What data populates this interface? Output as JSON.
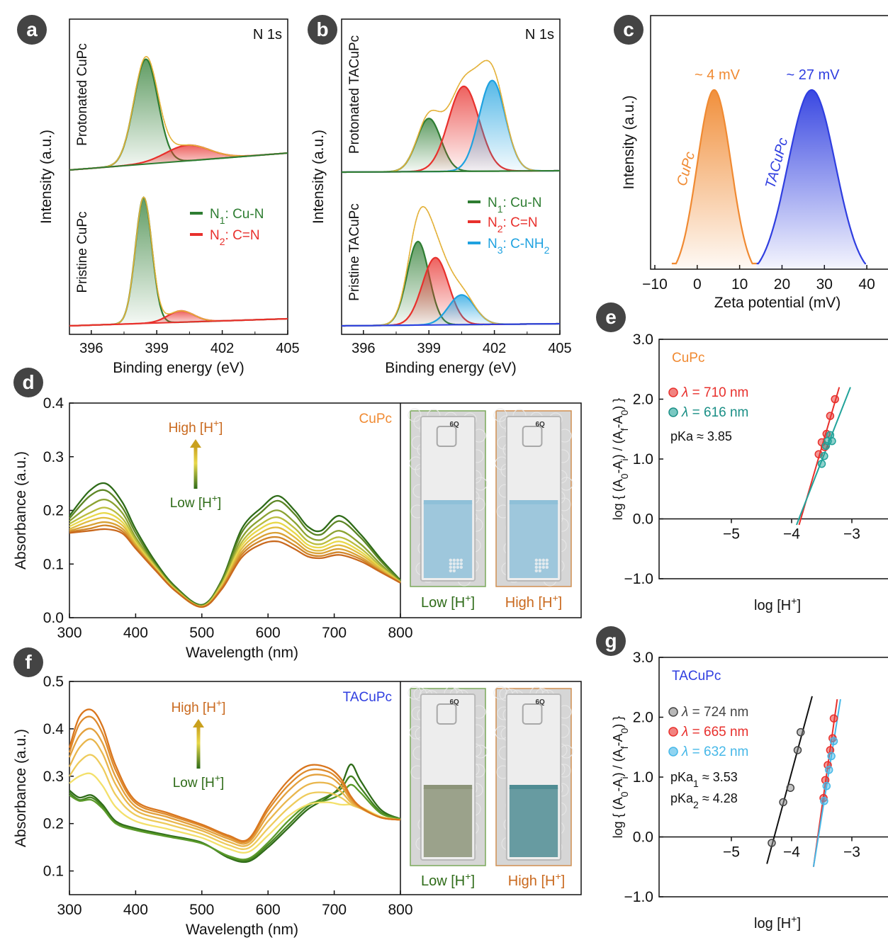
{
  "colors": {
    "n1": "#2e7d32",
    "n2": "#e8302c",
    "n3": "#1fa2e0",
    "cupc": "#f08a32",
    "tacupc": "#2f3ee0",
    "lowH": "#2e6b18",
    "highH": "#c9691e",
    "pts_red": "#e8302c",
    "pts_teal": "#21a39a",
    "pts_black": "#444444",
    "pts_sky": "#46b8e8",
    "panel_label_bg": "#444444"
  },
  "panels": {
    "a": {
      "label": "a",
      "corner": "N 1s",
      "ylabel": "Intensity (a.u.)",
      "xlabel": "Binding energy (eV)",
      "top_name": "Protonated CuPc",
      "bottom_name": "Pristine CuPc",
      "legend": [
        {
          "prefix": "N",
          "sub": "1",
          "rest": ": Cu-N"
        },
        {
          "prefix": "N",
          "sub": "2",
          "rest": ": C=N"
        }
      ]
    },
    "b": {
      "label": "b",
      "corner": "N 1s",
      "ylabel": "Intensity (a.u.)",
      "xlabel": "Binding energy (eV)",
      "top_name": "Protonated TACuPc",
      "bottom_name": "Pristine TACuPc",
      "legend": [
        {
          "prefix": "N",
          "sub": "1",
          "rest": ": Cu-N"
        },
        {
          "prefix": "N",
          "sub": "2",
          "rest": ": C=N"
        },
        {
          "prefix": "N",
          "sub": "3",
          "rest": ": C-NH",
          "tail_sub": "2"
        }
      ]
    },
    "c": {
      "label": "c",
      "ylabel": "Intensity (a.u.)",
      "xlabel": "Zeta potential (mV)",
      "annot_cupc": "~ 4 mV",
      "annot_tacupc": "~ 27 mV",
      "name_cupc": "CuPc",
      "name_tacupc": "TACuPc"
    },
    "d": {
      "label": "d",
      "ylabel": "Absorbance (a.u.)",
      "xlabel": "Wavelength (nm)",
      "tag": "CuPc",
      "high": "High [H",
      "low": "Low [H",
      "photo_low": "Low [H",
      "photo_high": "High [H",
      "cuvette_mark": "6Q"
    },
    "e": {
      "label": "e",
      "ylabel_main": "log { (A",
      "xlabel": "log [H",
      "tag": "CuPc",
      "legend": [
        "710 nm",
        "616 nm"
      ],
      "pka": "pKa ≈ 3.85"
    },
    "f": {
      "label": "f",
      "ylabel": "Absorbance (a.u.)",
      "xlabel": "Wavelength (nm)",
      "tag": "TACuPc",
      "high": "High [H",
      "low": "Low [H",
      "photo_low": "Low [H",
      "photo_high": "High [H",
      "cuvette_mark": "6Q"
    },
    "g": {
      "label": "g",
      "xlabel": "log [H",
      "tag": "TACuPc",
      "legend": [
        "724 nm",
        "665 nm",
        "632 nm"
      ],
      "pka1": "pKa",
      "pka1_sub": "1",
      "pka1_val": " ≈ 3.53",
      "pka2": "pKa",
      "pka2_sub": "2",
      "pka2_val": " ≈ 4.28"
    }
  },
  "chart_data": [
    {
      "panel": "a",
      "type": "line",
      "xlim": [
        395,
        405
      ],
      "xticks": [
        396,
        399,
        402,
        405
      ],
      "series": [
        {
          "name": "N1: Cu-N",
          "subplot": "Protonated CuPc",
          "peak_x": 398.5
        },
        {
          "name": "N2: C=N",
          "subplot": "Protonated CuPc",
          "peak_x": 400.4
        },
        {
          "name": "N1: Cu-N",
          "subplot": "Pristine CuPc",
          "peak_x": 398.4
        },
        {
          "name": "N2: C=N",
          "subplot": "Pristine CuPc",
          "peak_x": 400.1
        }
      ]
    },
    {
      "panel": "b",
      "type": "line",
      "xlim": [
        395,
        405
      ],
      "xticks": [
        396,
        399,
        402,
        405
      ],
      "series": [
        {
          "name": "N1: Cu-N",
          "subplot": "Protonated TACuPc",
          "peak_x": 399.0
        },
        {
          "name": "N2: C=N",
          "subplot": "Protonated TACuPc",
          "peak_x": 400.6
        },
        {
          "name": "N3: C-NH2",
          "subplot": "Protonated TACuPc",
          "peak_x": 401.9
        },
        {
          "name": "N1: Cu-N",
          "subplot": "Pristine TACuPc",
          "peak_x": 398.5
        },
        {
          "name": "N2: C=N",
          "subplot": "Pristine TACuPc",
          "peak_x": 399.3
        },
        {
          "name": "N3: C-NH2",
          "subplot": "Pristine TACuPc",
          "peak_x": 400.5
        }
      ]
    },
    {
      "panel": "c",
      "type": "area",
      "xlim": [
        -10,
        45
      ],
      "xticks": [
        -10,
        0,
        10,
        20,
        30,
        40
      ],
      "series": [
        {
          "name": "CuPc",
          "peak_x": 4
        },
        {
          "name": "TACuPc",
          "peak_x": 27
        }
      ]
    },
    {
      "panel": "d",
      "type": "line",
      "xlim": [
        300,
        800
      ],
      "ylim": [
        0.0,
        0.4
      ],
      "xticks": [
        300,
        400,
        500,
        600,
        700,
        800
      ],
      "yticks": [
        0.0,
        0.1,
        0.2,
        0.3,
        0.4
      ],
      "x": [
        300,
        330,
        355,
        380,
        400,
        430,
        460,
        500,
        530,
        560,
        590,
        615,
        640,
        660,
        680,
        708,
        740,
        770,
        800
      ],
      "series": [
        {
          "values": [
            0.19,
            0.236,
            0.25,
            0.215,
            0.165,
            0.104,
            0.058,
            0.024,
            0.07,
            0.165,
            0.205,
            0.227,
            0.2,
            0.17,
            0.162,
            0.19,
            0.155,
            0.11,
            0.07
          ]
        },
        {
          "values": [
            0.185,
            0.226,
            0.237,
            0.205,
            0.158,
            0.1,
            0.056,
            0.023,
            0.068,
            0.158,
            0.197,
            0.218,
            0.193,
            0.163,
            0.155,
            0.18,
            0.149,
            0.106,
            0.069
          ]
        },
        {
          "values": [
            0.18,
            0.208,
            0.22,
            0.195,
            0.15,
            0.097,
            0.054,
            0.022,
            0.065,
            0.148,
            0.185,
            0.2,
            0.178,
            0.152,
            0.145,
            0.162,
            0.137,
            0.1,
            0.067
          ]
        },
        {
          "values": [
            0.175,
            0.195,
            0.205,
            0.185,
            0.145,
            0.095,
            0.053,
            0.021,
            0.062,
            0.14,
            0.175,
            0.187,
            0.167,
            0.143,
            0.137,
            0.15,
            0.129,
            0.096,
            0.066
          ]
        },
        {
          "values": [
            0.17,
            0.187,
            0.195,
            0.178,
            0.14,
            0.093,
            0.052,
            0.021,
            0.06,
            0.134,
            0.167,
            0.177,
            0.158,
            0.136,
            0.131,
            0.142,
            0.123,
            0.093,
            0.066
          ]
        },
        {
          "values": [
            0.165,
            0.18,
            0.186,
            0.172,
            0.137,
            0.091,
            0.051,
            0.02,
            0.058,
            0.128,
            0.159,
            0.168,
            0.15,
            0.13,
            0.125,
            0.135,
            0.118,
            0.091,
            0.066
          ]
        },
        {
          "values": [
            0.162,
            0.172,
            0.178,
            0.166,
            0.134,
            0.09,
            0.05,
            0.02,
            0.056,
            0.122,
            0.151,
            0.158,
            0.142,
            0.124,
            0.12,
            0.128,
            0.113,
            0.088,
            0.065
          ]
        },
        {
          "values": [
            0.16,
            0.166,
            0.172,
            0.161,
            0.131,
            0.089,
            0.05,
            0.02,
            0.054,
            0.117,
            0.144,
            0.15,
            0.135,
            0.119,
            0.115,
            0.122,
            0.109,
            0.086,
            0.065
          ]
        },
        {
          "values": [
            0.158,
            0.162,
            0.165,
            0.157,
            0.129,
            0.088,
            0.05,
            0.02,
            0.053,
            0.112,
            0.137,
            0.142,
            0.128,
            0.114,
            0.111,
            0.117,
            0.105,
            0.085,
            0.065
          ]
        }
      ]
    },
    {
      "panel": "e",
      "type": "scatter",
      "xlim": [
        -6.2,
        -2.4
      ],
      "ylim": [
        -1.0,
        3.0
      ],
      "xticks": [
        -5,
        -4,
        -3
      ],
      "yticks": [
        -1.0,
        0.0,
        1.0,
        2.0,
        3.0
      ],
      "series": [
        {
          "name": "λ = 710 nm",
          "x": [
            -3.55,
            -3.5,
            -3.45,
            -3.42,
            -3.36,
            -3.28
          ],
          "y": [
            1.08,
            1.28,
            1.2,
            1.42,
            1.72,
            2.0
          ]
        },
        {
          "name": "λ = 616 nm",
          "x": [
            -3.5,
            -3.46,
            -3.43,
            -3.4,
            -3.36,
            -3.33
          ],
          "y": [
            0.92,
            1.05,
            1.22,
            1.3,
            1.4,
            1.3
          ]
        }
      ],
      "annotation": "pKa ≈ 3.85"
    },
    {
      "panel": "g",
      "type": "scatter",
      "xlim": [
        -6.2,
        -2.4
      ],
      "ylim": [
        -1.0,
        3.0
      ],
      "xticks": [
        -5,
        -4,
        -3
      ],
      "yticks": [
        -1.0,
        0.0,
        1.0,
        2.0,
        3.0
      ],
      "series": [
        {
          "name": "λ = 724 nm",
          "x": [
            -4.33,
            -4.14,
            -4.02,
            -3.9,
            -3.85
          ],
          "y": [
            -0.1,
            0.58,
            0.82,
            1.45,
            1.75
          ]
        },
        {
          "name": "λ = 665 nm",
          "x": [
            -3.47,
            -3.44,
            -3.4,
            -3.36,
            -3.32,
            -3.3
          ],
          "y": [
            0.65,
            0.95,
            1.2,
            1.45,
            1.65,
            1.98
          ]
        },
        {
          "name": "λ = 632 nm",
          "x": [
            -3.46,
            -3.42,
            -3.38,
            -3.34,
            -3.3
          ],
          "y": [
            0.6,
            0.85,
            1.12,
            1.35,
            1.6
          ]
        }
      ],
      "annotation": [
        "pKa1 ≈ 3.53",
        "pKa2 ≈ 4.28"
      ]
    },
    {
      "panel": "f",
      "type": "line",
      "xlim": [
        300,
        800
      ],
      "ylim": [
        0.05,
        0.5
      ],
      "xticks": [
        300,
        400,
        500,
        600,
        700,
        800
      ],
      "yticks": [
        0.1,
        0.2,
        0.3,
        0.4,
        0.5
      ],
      "x": [
        300,
        315,
        333,
        350,
        370,
        400,
        450,
        500,
        540,
        570,
        600,
        630,
        660,
        690,
        710,
        725,
        740,
        770,
        800
      ],
      "series": [
        {
          "values": [
            0.27,
            0.255,
            0.26,
            0.24,
            0.205,
            0.19,
            0.175,
            0.16,
            0.128,
            0.12,
            0.15,
            0.19,
            0.23,
            0.255,
            0.28,
            0.325,
            0.29,
            0.23,
            0.21
          ]
        },
        {
          "values": [
            0.265,
            0.25,
            0.255,
            0.236,
            0.202,
            0.188,
            0.173,
            0.159,
            0.13,
            0.123,
            0.155,
            0.196,
            0.236,
            0.258,
            0.273,
            0.3,
            0.275,
            0.225,
            0.21
          ]
        },
        {
          "values": [
            0.26,
            0.248,
            0.25,
            0.232,
            0.2,
            0.186,
            0.172,
            0.158,
            0.132,
            0.126,
            0.16,
            0.205,
            0.24,
            0.25,
            0.262,
            0.282,
            0.265,
            0.222,
            0.21
          ]
        },
        {
          "values": [
            0.285,
            0.3,
            0.305,
            0.28,
            0.235,
            0.205,
            0.188,
            0.17,
            0.147,
            0.14,
            0.175,
            0.215,
            0.24,
            0.245,
            0.24,
            0.24,
            0.235,
            0.215,
            0.208
          ]
        },
        {
          "values": [
            0.3,
            0.33,
            0.345,
            0.318,
            0.26,
            0.218,
            0.198,
            0.178,
            0.155,
            0.148,
            0.19,
            0.232,
            0.262,
            0.265,
            0.255,
            0.24,
            0.232,
            0.213,
            0.208
          ]
        },
        {
          "values": [
            0.32,
            0.36,
            0.378,
            0.348,
            0.282,
            0.228,
            0.206,
            0.185,
            0.162,
            0.155,
            0.205,
            0.25,
            0.282,
            0.285,
            0.268,
            0.245,
            0.232,
            0.213,
            0.208
          ]
        },
        {
          "values": [
            0.34,
            0.385,
            0.4,
            0.37,
            0.298,
            0.236,
            0.213,
            0.19,
            0.168,
            0.16,
            0.218,
            0.268,
            0.3,
            0.3,
            0.28,
            0.25,
            0.233,
            0.213,
            0.208
          ]
        },
        {
          "values": [
            0.35,
            0.41,
            0.425,
            0.39,
            0.312,
            0.243,
            0.218,
            0.195,
            0.172,
            0.164,
            0.228,
            0.28,
            0.312,
            0.31,
            0.288,
            0.255,
            0.234,
            0.213,
            0.208
          ]
        },
        {
          "values": [
            0.36,
            0.425,
            0.44,
            0.405,
            0.322,
            0.248,
            0.222,
            0.198,
            0.175,
            0.167,
            0.235,
            0.29,
            0.322,
            0.318,
            0.295,
            0.258,
            0.235,
            0.213,
            0.208
          ]
        }
      ]
    }
  ]
}
